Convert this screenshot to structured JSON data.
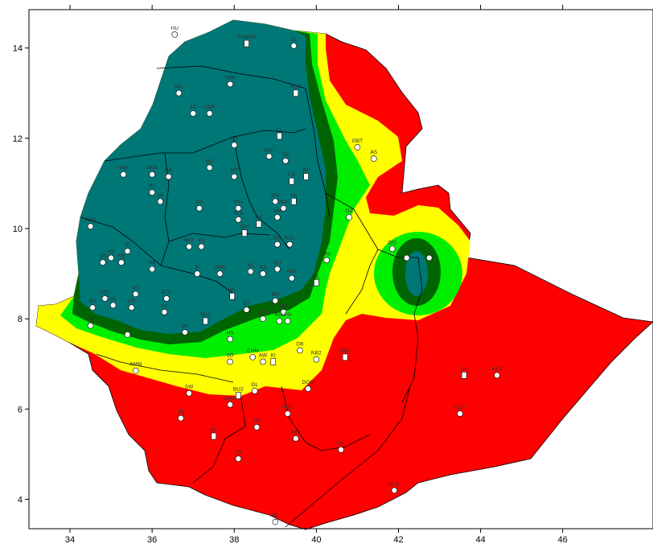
{
  "map": {
    "x_axis": {
      "ticks": [
        "34",
        "36",
        "38",
        "40",
        "42",
        "44",
        "46"
      ],
      "values": [
        34,
        36,
        38,
        40,
        42,
        44,
        46
      ],
      "range": [
        33.0,
        48.2
      ]
    },
    "y_axis": {
      "ticks": [
        "14",
        "12",
        "10",
        "8",
        "6",
        "4"
      ],
      "values": [
        14,
        12,
        10,
        8,
        6,
        4
      ],
      "range": [
        3.35,
        14.85
      ]
    },
    "colors": {
      "teal": "#007777",
      "dark_green": "#006400",
      "green": "#00ee00",
      "yellow": "#ffff00",
      "red": "#ff0000",
      "border": "#000000",
      "background": "#ffffff"
    },
    "stations": [
      {
        "label": "HU",
        "lon": 36.55,
        "lat": 14.3,
        "marker": "circle"
      },
      {
        "label": "ENRAD",
        "lon": 38.3,
        "lat": 14.1,
        "marker": "square"
      },
      {
        "label": "SL",
        "lon": 39.45,
        "lat": 14.05,
        "marker": "circle"
      },
      {
        "label": "MH",
        "lon": 36.65,
        "lat": 13.0,
        "marker": "circle"
      },
      {
        "label": "DBK",
        "lon": 37.9,
        "lat": 13.2,
        "marker": "circle"
      },
      {
        "label": "MYT",
        "lon": 39.5,
        "lat": 13.0,
        "marker": "square"
      },
      {
        "label": "AK",
        "lon": 37.0,
        "lat": 12.55,
        "marker": "circle"
      },
      {
        "label": "GDR",
        "lon": 37.4,
        "lat": 12.55,
        "marker": "circle"
      },
      {
        "label": "LL",
        "lon": 39.1,
        "lat": 12.05,
        "marker": "square"
      },
      {
        "label": "DT",
        "lon": 38.0,
        "lat": 11.85,
        "marker": "circle"
      },
      {
        "label": "DBT",
        "lon": 41.0,
        "lat": 11.8,
        "marker": "circle"
      },
      {
        "label": "AS",
        "lon": 41.4,
        "lat": 11.55,
        "marker": "circle"
      },
      {
        "label": "MNK",
        "lon": 35.3,
        "lat": 11.2,
        "marker": "circle"
      },
      {
        "label": "PAW",
        "lon": 36.0,
        "lat": 11.2,
        "marker": "circle"
      },
      {
        "label": "DA",
        "lon": 36.4,
        "lat": 11.15,
        "marker": "circle"
      },
      {
        "label": "BD",
        "lon": 37.4,
        "lat": 11.35,
        "marker": "circle"
      },
      {
        "label": "MT",
        "lon": 38.0,
        "lat": 11.15,
        "marker": "circle"
      },
      {
        "label": "WDT",
        "lon": 38.85,
        "lat": 11.6,
        "marker": "circle"
      },
      {
        "label": "SR",
        "lon": 39.25,
        "lat": 11.5,
        "marker": "circle"
      },
      {
        "label": "CB",
        "lon": 39.4,
        "lat": 11.05,
        "marker": "square"
      },
      {
        "label": "BK",
        "lon": 39.75,
        "lat": 11.15,
        "marker": "square"
      },
      {
        "label": "BL",
        "lon": 36.0,
        "lat": 10.8,
        "marker": "circle"
      },
      {
        "label": "SB",
        "lon": 36.2,
        "lat": 10.6,
        "marker": "circle"
      },
      {
        "label": "DU",
        "lon": 37.15,
        "lat": 10.45,
        "marker": "circle"
      },
      {
        "label": "MSL",
        "lon": 38.1,
        "lat": 10.45,
        "marker": "circle"
      },
      {
        "label": "WU",
        "lon": 39.0,
        "lat": 10.6,
        "marker": "circle"
      },
      {
        "label": "MJ",
        "lon": 39.45,
        "lat": 10.6,
        "marker": "square"
      },
      {
        "label": "MDH",
        "lon": 39.2,
        "lat": 10.45,
        "marker": "circle"
      },
      {
        "label": "ASO",
        "lon": 34.5,
        "lat": 10.05,
        "marker": "circle"
      },
      {
        "label": "ALK",
        "lon": 38.1,
        "lat": 10.2,
        "marker": "circle"
      },
      {
        "label": "FR",
        "lon": 38.6,
        "lat": 10.1,
        "marker": "square"
      },
      {
        "label": "DM",
        "lon": 38.25,
        "lat": 9.9,
        "marker": "square"
      },
      {
        "label": "AM",
        "lon": 39.05,
        "lat": 10.25,
        "marker": "circle"
      },
      {
        "label": "DZ",
        "lon": 40.8,
        "lat": 10.25,
        "marker": "circle"
      },
      {
        "label": "NKT",
        "lon": 36.9,
        "lat": 9.6,
        "marker": "circle"
      },
      {
        "label": "KK",
        "lon": 37.2,
        "lat": 9.6,
        "marker": "circle"
      },
      {
        "label": "DB",
        "lon": 39.05,
        "lat": 9.65,
        "marker": "circle"
      },
      {
        "label": "AS2",
        "lon": 39.35,
        "lat": 9.65,
        "marker": "circle"
      },
      {
        "label": "DD",
        "lon": 41.85,
        "lat": 9.55,
        "marker": "circle"
      },
      {
        "label": "HR",
        "lon": 42.2,
        "lat": 9.35,
        "marker": "circle"
      },
      {
        "label": "JJ",
        "lon": 42.75,
        "lat": 9.35,
        "marker": "circle"
      },
      {
        "label": "NJ",
        "lon": 35.4,
        "lat": 9.5,
        "marker": "circle"
      },
      {
        "label": "AN",
        "lon": 35.0,
        "lat": 9.35,
        "marker": "circle"
      },
      {
        "label": "RB",
        "lon": 35.25,
        "lat": 9.25,
        "marker": "circle"
      },
      {
        "label": "NK",
        "lon": 36.0,
        "lat": 9.1,
        "marker": "circle"
      },
      {
        "label": "BI",
        "lon": 37.1,
        "lat": 9.0,
        "marker": "circle"
      },
      {
        "label": "AHB",
        "lon": 37.65,
        "lat": 9.0,
        "marker": "circle"
      },
      {
        "label": "NL",
        "lon": 38.4,
        "lat": 9.05,
        "marker": "circle"
      },
      {
        "label": "AA",
        "lon": 38.7,
        "lat": 9.0,
        "marker": "circle"
      },
      {
        "label": "GD",
        "lon": 39.05,
        "lat": 9.1,
        "marker": "circle"
      },
      {
        "label": "MKI",
        "lon": 39.4,
        "lat": 8.9,
        "marker": "circle"
      },
      {
        "label": "MS",
        "lon": 40.25,
        "lat": 9.3,
        "marker": "circle"
      },
      {
        "label": "GL",
        "lon": 40.0,
        "lat": 8.8,
        "marker": "square"
      },
      {
        "label": "GN",
        "lon": 34.8,
        "lat": 9.25,
        "marker": "circle"
      },
      {
        "label": "DBD",
        "lon": 34.85,
        "lat": 8.45,
        "marker": "circle"
      },
      {
        "label": "BR",
        "lon": 35.05,
        "lat": 8.3,
        "marker": "circle"
      },
      {
        "label": "BU",
        "lon": 34.55,
        "lat": 8.25,
        "marker": "circle"
      },
      {
        "label": "AC",
        "lon": 35.6,
        "lat": 8.55,
        "marker": "circle"
      },
      {
        "label": "GR",
        "lon": 35.5,
        "lat": 8.25,
        "marker": "circle"
      },
      {
        "label": "BDL",
        "lon": 36.35,
        "lat": 8.45,
        "marker": "circle"
      },
      {
        "label": "SK",
        "lon": 36.3,
        "lat": 8.15,
        "marker": "circle"
      },
      {
        "label": "WL",
        "lon": 37.95,
        "lat": 8.5,
        "marker": "square"
      },
      {
        "label": "BT",
        "lon": 38.3,
        "lat": 8.2,
        "marker": "circle"
      },
      {
        "label": "ZW",
        "lon": 38.7,
        "lat": 8.0,
        "marker": "circle"
      },
      {
        "label": "DG",
        "lon": 39.2,
        "lat": 8.15,
        "marker": "circle"
      },
      {
        "label": "MR",
        "lon": 39.0,
        "lat": 8.4,
        "marker": "circle"
      },
      {
        "label": "ASL",
        "lon": 39.1,
        "lat": 7.95,
        "marker": "circle"
      },
      {
        "label": "RO",
        "lon": 39.3,
        "lat": 7.95,
        "marker": "circle"
      },
      {
        "label": "GB",
        "lon": 34.5,
        "lat": 7.85,
        "marker": "circle"
      },
      {
        "label": "TP",
        "lon": 35.4,
        "lat": 7.65,
        "marker": "circle"
      },
      {
        "label": "JM",
        "lon": 36.8,
        "lat": 7.7,
        "marker": "circle"
      },
      {
        "label": "BK2",
        "lon": 37.3,
        "lat": 7.95,
        "marker": "square"
      },
      {
        "label": "HS",
        "lon": 37.9,
        "lat": 7.55,
        "marker": "circle"
      },
      {
        "label": "DR",
        "lon": 39.6,
        "lat": 7.3,
        "marker": "circle"
      },
      {
        "label": "GN2",
        "lon": 40.7,
        "lat": 7.15,
        "marker": "square"
      },
      {
        "label": "RB2",
        "lon": 40.0,
        "lat": 7.1,
        "marker": "circle"
      },
      {
        "label": "CHN",
        "lon": 38.45,
        "lat": 7.15,
        "marker": "circle"
      },
      {
        "label": "AW",
        "lon": 38.7,
        "lat": 7.05,
        "marker": "circle"
      },
      {
        "label": "KI",
        "lon": 38.95,
        "lat": 7.05,
        "marker": "square"
      },
      {
        "label": "SD",
        "lon": 37.9,
        "lat": 7.05,
        "marker": "circle"
      },
      {
        "label": "AMN",
        "lon": 35.6,
        "lat": 6.85,
        "marker": "circle"
      },
      {
        "label": "GH",
        "lon": 43.6,
        "lat": 6.75,
        "marker": "square"
      },
      {
        "label": "SW",
        "lon": 36.9,
        "lat": 6.35,
        "marker": "circle"
      },
      {
        "label": "BU2",
        "lon": 38.1,
        "lat": 6.3,
        "marker": "square"
      },
      {
        "label": "DL",
        "lon": 38.5,
        "lat": 6.4,
        "marker": "circle"
      },
      {
        "label": "AM2",
        "lon": 37.9,
        "lat": 6.1,
        "marker": "circle"
      },
      {
        "label": "DOM",
        "lon": 39.8,
        "lat": 6.45,
        "marker": "circle"
      },
      {
        "label": "HU2",
        "lon": 39.3,
        "lat": 5.9,
        "marker": "circle"
      },
      {
        "label": "GT",
        "lon": 38.55,
        "lat": 5.6,
        "marker": "circle"
      },
      {
        "label": "JN",
        "lon": 36.7,
        "lat": 5.8,
        "marker": "circle"
      },
      {
        "label": "KC",
        "lon": 37.5,
        "lat": 5.4,
        "marker": "square"
      },
      {
        "label": "MG",
        "lon": 39.5,
        "lat": 5.35,
        "marker": "circle"
      },
      {
        "label": "ER",
        "lon": 40.6,
        "lat": 5.1,
        "marker": "circle"
      },
      {
        "label": "GD2",
        "lon": 43.5,
        "lat": 5.9,
        "marker": "circle"
      },
      {
        "label": "KK2",
        "lon": 44.4,
        "lat": 6.75,
        "marker": "circle"
      },
      {
        "label": "YB",
        "lon": 38.1,
        "lat": 4.9,
        "marker": "circle"
      },
      {
        "label": "DL2",
        "lon": 41.9,
        "lat": 4.2,
        "marker": "circle"
      },
      {
        "label": "ML",
        "lon": 39.0,
        "lat": 3.5,
        "marker": "circle"
      }
    ]
  }
}
